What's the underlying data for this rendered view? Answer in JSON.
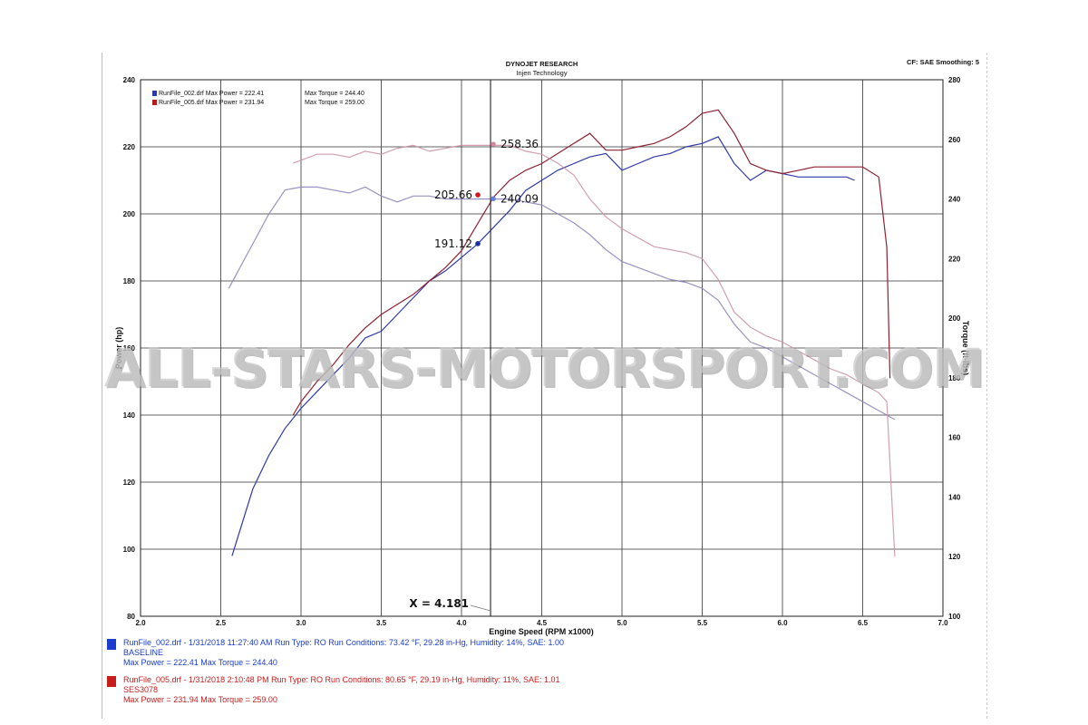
{
  "header": {
    "title": "DYNOJET RESEARCH",
    "subtitle": "Injen Technology",
    "settings": "CF: SAE  Smoothing: 5"
  },
  "watermark": "ALL-STARS-MOTORSPORT.COM",
  "legend": [
    {
      "power_text": "RunFile_002.drf Max Power = 222.41",
      "torque_text": "Max Torque = 244.40",
      "color": "#2f3aa8"
    },
    {
      "power_text": "RunFile_005.drf Max Power = 231.94",
      "torque_text": "Max Torque = 259.00",
      "color": "#b51d1d"
    }
  ],
  "runs": [
    {
      "color": "#1a3ccf",
      "line1": "RunFile_002.drf - 1/31/2018 11:27:40 AM  Run Type: RO  Run Conditions: 73.42 °F, 29.28 in-Hg,  Humidity:  14%, SAE: 1.00",
      "line2": "BASELINE",
      "line3": "Max Power = 222.41  Max Torque = 244.40"
    },
    {
      "color": "#c81d1d",
      "line1": "RunFile_005.drf - 1/31/2018 2:10:48 PM  Run Type: RO  Run Conditions: 80.65 °F, 29.19 in-Hg,  Humidity:  11%, SAE: 1.01",
      "line2": "SES3078",
      "line3": "Max Power = 231.94  Max Torque = 259.00"
    }
  ],
  "chart_data": {
    "type": "line",
    "xlabel": "Engine Speed (RPM x1000)",
    "ylabel": "Power (hp)",
    "y2label": "Torque (ft-lbs)",
    "xlim": [
      2.0,
      7.0
    ],
    "ylim": [
      80,
      240
    ],
    "y2lim": [
      100,
      280
    ],
    "x_ticks": [
      "2.0",
      "2.5",
      "3.0",
      "3.5",
      "4.0",
      "4.5",
      "5.0",
      "5.5",
      "6.0",
      "6.5",
      "7.0"
    ],
    "y_ticks": [
      "80",
      "100",
      "120",
      "140",
      "160",
      "180",
      "200",
      "220",
      "240"
    ],
    "y2_ticks": [
      "100",
      "120",
      "140",
      "160",
      "180",
      "200",
      "220",
      "240",
      "260",
      "280"
    ],
    "grid": true,
    "cursor": {
      "x": 4.181,
      "label": "X = 4.181"
    },
    "annotations": [
      {
        "text": "258.36",
        "series": "RunFile_005 torque",
        "x": 4.181,
        "value": 258.36,
        "axis": "y2",
        "color": "#d08a9a"
      },
      {
        "text": "205.66",
        "series": "RunFile_005 power",
        "x": 4.181,
        "value": 205.66,
        "axis": "y",
        "color": "#d4141a"
      },
      {
        "text": "240.09",
        "series": "RunFile_002 torque",
        "x": 4.181,
        "value": 240.09,
        "axis": "y2",
        "color": "#6a7fd6"
      },
      {
        "text": "191.12",
        "series": "RunFile_002 power",
        "x": 4.181,
        "value": 191.12,
        "axis": "y",
        "color": "#1a2fa0"
      }
    ],
    "series": [
      {
        "name": "RunFile_002.drf",
        "measure": "power",
        "axis": "y",
        "color": "#2f3aa8",
        "opacity": 1,
        "x": [
          2.57,
          2.7,
          2.8,
          2.9,
          3.0,
          3.1,
          3.2,
          3.3,
          3.4,
          3.5,
          3.6,
          3.7,
          3.8,
          3.9,
          4.0,
          4.1,
          4.2,
          4.3,
          4.4,
          4.5,
          4.6,
          4.7,
          4.8,
          4.9,
          5.0,
          5.1,
          5.2,
          5.3,
          5.4,
          5.5,
          5.6,
          5.7,
          5.8,
          5.9,
          6.0,
          6.1,
          6.2,
          6.3,
          6.4,
          6.45
        ],
        "values": [
          98,
          118,
          128,
          136,
          142,
          147,
          152,
          157,
          163,
          165,
          170,
          175,
          180,
          183,
          187,
          191,
          196,
          201,
          207,
          210,
          213,
          215,
          217,
          218,
          213,
          215,
          217,
          218,
          220,
          221,
          223,
          215,
          210,
          213,
          212,
          211,
          211,
          211,
          211,
          210
        ]
      },
      {
        "name": "RunFile_005.drf",
        "measure": "power",
        "axis": "y",
        "color": "#8e2233",
        "opacity": 1,
        "x": [
          2.95,
          3.0,
          3.1,
          3.2,
          3.3,
          3.4,
          3.5,
          3.6,
          3.7,
          3.8,
          3.9,
          4.0,
          4.1,
          4.2,
          4.3,
          4.4,
          4.5,
          4.6,
          4.7,
          4.8,
          4.9,
          5.0,
          5.1,
          5.2,
          5.3,
          5.4,
          5.5,
          5.6,
          5.7,
          5.8,
          5.9,
          6.0,
          6.1,
          6.2,
          6.3,
          6.4,
          6.5,
          6.6,
          6.65,
          6.67
        ],
        "values": [
          140,
          144,
          150,
          155,
          161,
          166,
          170,
          173,
          176,
          180,
          184,
          189,
          197,
          205,
          210,
          213,
          215,
          218,
          221,
          224,
          219,
          219,
          220,
          221,
          223,
          226,
          230,
          231,
          224,
          215,
          213,
          212,
          213,
          214,
          214,
          214,
          214,
          211,
          190,
          151
        ]
      },
      {
        "name": "RunFile_002.drf",
        "measure": "torque",
        "axis": "y2",
        "color": "#8a7fb6",
        "opacity": 0.85,
        "x": [
          2.55,
          2.7,
          2.8,
          2.9,
          3.0,
          3.1,
          3.2,
          3.3,
          3.4,
          3.5,
          3.6,
          3.7,
          3.8,
          3.9,
          4.0,
          4.1,
          4.2,
          4.3,
          4.4,
          4.5,
          4.6,
          4.7,
          4.8,
          4.9,
          5.0,
          5.1,
          5.2,
          5.3,
          5.4,
          5.5,
          5.6,
          5.7,
          5.8,
          5.9,
          6.0,
          6.1,
          6.2,
          6.3,
          6.4,
          6.5,
          6.6,
          6.7
        ],
        "values": [
          210,
          225,
          235,
          243,
          244,
          244,
          243,
          242,
          244,
          241,
          239,
          241,
          241,
          240,
          240,
          240,
          240,
          240,
          239,
          238,
          235,
          232,
          228,
          223,
          219,
          217,
          215,
          213,
          212,
          210,
          206,
          198,
          192,
          190,
          187,
          184,
          181,
          178,
          175,
          172,
          169,
          166
        ]
      },
      {
        "name": "RunFile_005.drf",
        "measure": "torque",
        "axis": "y2",
        "color": "#c98fa6",
        "opacity": 0.85,
        "x": [
          2.95,
          3.0,
          3.1,
          3.2,
          3.3,
          3.4,
          3.5,
          3.6,
          3.7,
          3.8,
          3.9,
          4.0,
          4.1,
          4.2,
          4.3,
          4.4,
          4.5,
          4.6,
          4.7,
          4.8,
          4.9,
          5.0,
          5.1,
          5.2,
          5.3,
          5.4,
          5.5,
          5.6,
          5.7,
          5.8,
          5.9,
          6.0,
          6.1,
          6.2,
          6.3,
          6.4,
          6.5,
          6.6,
          6.65,
          6.7
        ],
        "values": [
          252,
          253,
          255,
          255,
          254,
          256,
          255,
          257,
          258,
          256,
          257,
          258,
          258,
          258,
          258,
          256,
          255,
          252,
          248,
          240,
          234,
          230,
          227,
          224,
          223,
          222,
          220,
          213,
          202,
          197,
          194,
          192,
          189,
          186,
          183,
          181,
          178,
          175,
          172,
          120
        ]
      }
    ]
  }
}
